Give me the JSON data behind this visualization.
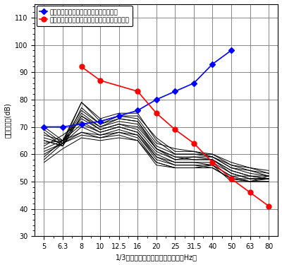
{
  "x_positions": [
    5,
    6.3,
    8,
    10,
    12.5,
    16,
    20,
    25,
    31.5,
    40,
    50,
    63,
    80
  ],
  "x_labels": [
    "5",
    "6.3",
    "8",
    "10",
    "12.5",
    "16",
    "20",
    "25",
    "31.5",
    "40",
    "50",
    "63",
    "80"
  ],
  "blue_ref": [
    70,
    70,
    71,
    72,
    74,
    76,
    80,
    83,
    86,
    93,
    98,
    null,
    null
  ],
  "red_ref": [
    null,
    null,
    92,
    87,
    null,
    83,
    75,
    69,
    64,
    57,
    51,
    46,
    41
  ],
  "ylabel": "音圧レベル(dB)",
  "xlabel": "1/3オクターブバンド中心周波数（Hz）",
  "ylim": [
    30,
    115
  ],
  "yticks": [
    30,
    40,
    50,
    60,
    70,
    80,
    90,
    100,
    110
  ],
  "legend_blue": "低周波音による物的苦情に関する参照値",
  "legend_red": "低周波音による心身に係る苦情に関する参照値",
  "blue_color": "#0000FF",
  "red_color": "#FF0000",
  "bg_color": "#FFFFFF",
  "grid_color_major": "#888888",
  "grid_color_minor": "#CCCCCC",
  "black_lines": [
    [
      70,
      65,
      79,
      73,
      75,
      75,
      65,
      60,
      60,
      60,
      57,
      55,
      54
    ],
    [
      69,
      64,
      79,
      72,
      74,
      74,
      66,
      61,
      61,
      59,
      55,
      54,
      52
    ],
    [
      68,
      63,
      77,
      71,
      74,
      73,
      64,
      62,
      61,
      60,
      56,
      54,
      53
    ],
    [
      67,
      65,
      76,
      71,
      73,
      72,
      63,
      60,
      60,
      59,
      55,
      53,
      52
    ],
    [
      66,
      64,
      75,
      70,
      73,
      72,
      62,
      59,
      59,
      59,
      56,
      55,
      53
    ],
    [
      65,
      63,
      74,
      70,
      72,
      71,
      62,
      58,
      59,
      58,
      54,
      52,
      51
    ],
    [
      65,
      63,
      74,
      69,
      71,
      70,
      62,
      59,
      58,
      58,
      53,
      51,
      51
    ],
    [
      64,
      65,
      73,
      69,
      71,
      69,
      61,
      58,
      58,
      58,
      54,
      52,
      52
    ],
    [
      63,
      67,
      72,
      68,
      70,
      68,
      60,
      57,
      57,
      57,
      53,
      51,
      51
    ],
    [
      62,
      65,
      71,
      68,
      70,
      68,
      59,
      57,
      57,
      56,
      52,
      50,
      50
    ],
    [
      61,
      64,
      70,
      67,
      69,
      67,
      59,
      56,
      56,
      56,
      52,
      52,
      51
    ],
    [
      60,
      64,
      68,
      67,
      68,
      67,
      58,
      56,
      56,
      55,
      51,
      51,
      51
    ],
    [
      59,
      65,
      68,
      66,
      68,
      66,
      57,
      55,
      55,
      55,
      51,
      50,
      52
    ],
    [
      58,
      64,
      67,
      66,
      67,
      65,
      57,
      55,
      55,
      56,
      50,
      50,
      50
    ],
    [
      57,
      62,
      66,
      65,
      66,
      65,
      56,
      55,
      55,
      55,
      51,
      50,
      51
    ]
  ]
}
